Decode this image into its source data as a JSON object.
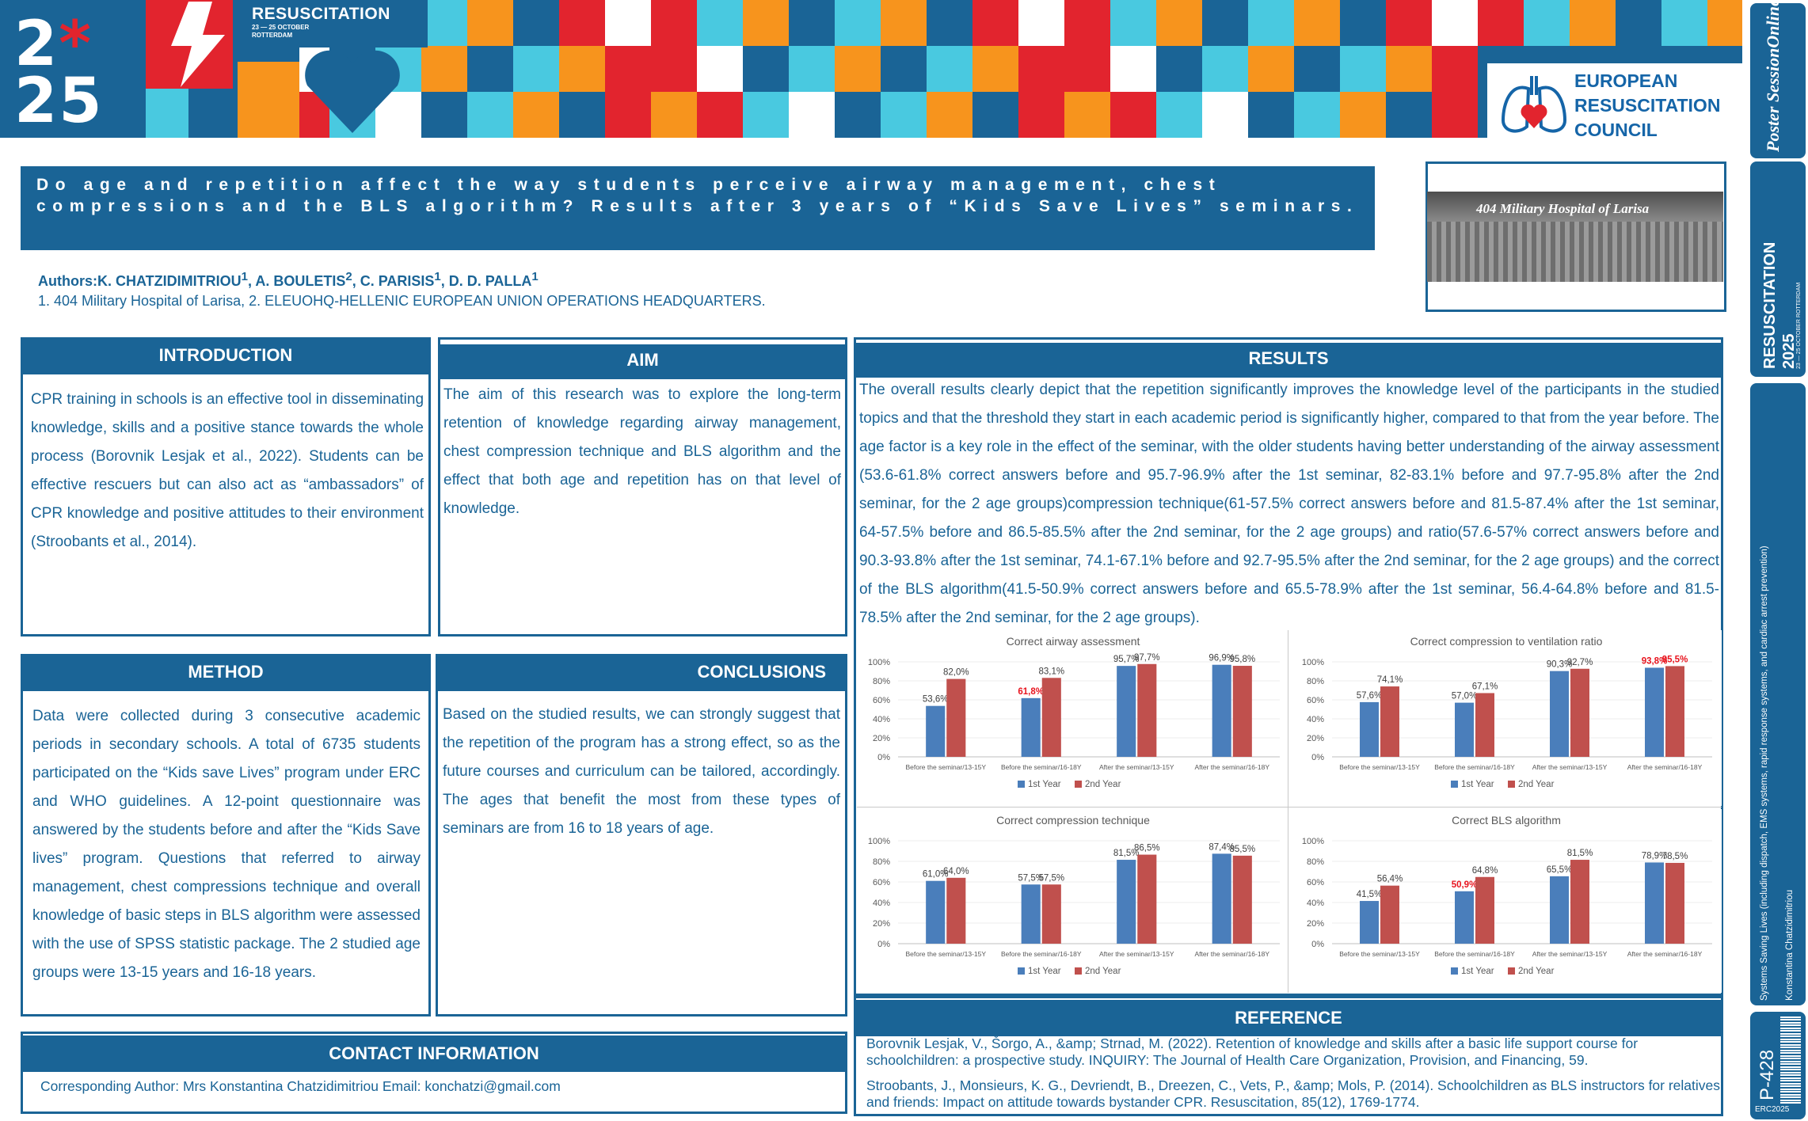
{
  "banner": {
    "year_top": "2",
    "year_asterisk": "*",
    "year_bottom": "25",
    "event_name": "RESUSCITATION",
    "event_dates": "23 — 25 OCTOBER",
    "event_city": "ROTTERDAM",
    "erc_line1": "EUROPEAN",
    "erc_line2": "RESUSCITATION",
    "erc_line3": "COUNCIL"
  },
  "sidebar": {
    "session_text": "Poster SessionOnline",
    "event_brand": "RESUSCITATION",
    "event_year": "2025",
    "event_dates": "23 — 25 OCTOBER",
    "event_city": "ROTTERDAM",
    "topic": "Systems Saving Lives (including dispatch, EMS systems, rapid response systems, and cardiac arrest prevention)",
    "author": "Konstantina Chatzidimitriou",
    "poster_id": "P-428",
    "code": "ERC2025"
  },
  "title": {
    "text": "Do age and repetition affect the way students perceive airway management, chest compressions and the BLS algorithm? Results after 3 years of “Kids Save Lives” seminars."
  },
  "hospital_image_label": "404 Military Hospital of Larisa",
  "authors": {
    "prefix": "Authors:",
    "a1": "K. CHATZIDIMITRIOU",
    "s1": "1",
    "a2": ", A. BOULETIS",
    "s2": "2",
    "a3": ", C. PARISIS",
    "s3": "1",
    "a4": ", D. D. PALLA",
    "s4": "1",
    "affiliations": "1. 404 Military Hospital of Larisa, 2. ELEUOHQ-HELLENIC EUROPEAN UNION OPERATIONS HEADQUARTERS."
  },
  "sections": {
    "introduction": {
      "heading": "INTRODUCTION",
      "body": "CPR training in schools is an effective tool in disseminating knowledge, skills and a positive stance towards the whole process (Borovnik Lesjak et al., 2022). Students can be effective rescuers but can also act as “ambassadors” of CPR knowledge and positive attitudes to their environment (Stroobants et al., 2014)."
    },
    "aim": {
      "heading": "AIM",
      "body": "The aim of this research was to explore the long-term retention of knowledge regarding airway management, chest compression technique and BLS algorithm and the effect that both age and repetition has on that level of knowledge."
    },
    "results": {
      "heading": "RESULTS",
      "body": "The overall results clearly depict that the repetition significantly improves the knowledge level of the participants in the studied topics and that the threshold they start in each academic period is significantly higher, compared to that from the year before. The age factor is a key role in the effect of the seminar, with the older students having better understanding of the airway assessment (53.6-61.8% correct answers before and 95.7-96.9% after the 1st seminar, 82-83.1% before and 97.7-95.8% after the 2nd seminar, for the 2 age groups)compression technique(61-57.5% correct answers before and 81.5-87.4% after the 1st seminar, 64-57.5% before and 86.5-85.5% after the 2nd seminar, for the 2 age groups)  and ratio(57.6-57% correct answers before and 90.3-93.8% after the 1st seminar, 74.1-67.1% before and 92.7-95.5% after the 2nd seminar, for the 2 age groups)  and the correct of the BLS algorithm(41.5-50.9% correct answers before and 65.5-78.9% after the 1st seminar, 56.4-64.8% before and 81.5-78.5% after the 2nd seminar, for the 2 age groups)."
    },
    "method": {
      "heading": "METHOD",
      "body": "Data were collected during 3 consecutive academic periods in secondary schools. A total of 6735 students participated on the “Kids save Lives” program under ERC and WHO guidelines. A 12-point questionnaire was answered by the students before and after the “Kids Save lives” program. Questions that referred to airway management, chest compressions technique and overall knowledge of basic steps in BLS algorithm were assessed with the use of SPSS statistic package. The 2 studied age groups were 13-15 years and 16-18 years."
    },
    "conclusions": {
      "heading": "CONCLUSIONS",
      "body": "Based on the studied results, we can strongly suggest that the repetition of the program has a strong effect, so as the future courses and curriculum can be tailored, accordingly. The ages that benefit the most from these types of seminars are from 16 to 18 years of age."
    },
    "contact": {
      "heading": "CONTACT INFORMATION",
      "body": "Corresponding Author: Mrs Konstantina Chatzidimitriou Email: konchatzi@gmail.com"
    },
    "reference": {
      "heading": "REFERENCE",
      "ref1": "Borovnik Lesjak, V., Šorgo, A., &amp; Strnad, M. (2022). Retention of knowledge and skills after a basic life support course for schoolchildren: a prospective study. INQUIRY: The Journal of Health Care Organization, Provision, and Financing, 59.",
      "ref2": "Stroobants, J., Monsieurs, K. G., Devriendt, B., Dreezen, C., Vets, P., &amp; Mols, P. (2014). Schoolchildren as BLS instructors for relatives and friends: Impact on attitude towards bystander CPR. Resuscitation, 85(12), 1769-1774."
    }
  },
  "colors": {
    "primary": "#1a6496",
    "series1": "#4a7ebb",
    "series2": "#c0504d",
    "highlight": "#e8141e"
  },
  "chart_data": [
    {
      "type": "bar",
      "title": "Correct airway assessment",
      "categories": [
        "Before the seminar/13-15Y",
        "Before the seminar/16-18Y",
        "After the seminar/13-15Y",
        "After the seminar/16-18Y"
      ],
      "ylim": [
        0,
        100
      ],
      "yticks": [
        "0%",
        "20%",
        "40%",
        "60%",
        "80%",
        "100%"
      ],
      "legend": "bottom",
      "series": [
        {
          "name": "1st Year",
          "values": [
            53.6,
            61.8,
            95.7,
            96.9
          ],
          "labels": [
            "53,6%",
            "61,8%",
            "95,7%",
            "96,9%"
          ],
          "highlight": [
            false,
            true,
            false,
            false
          ]
        },
        {
          "name": "2nd Year",
          "values": [
            82.0,
            83.1,
            97.7,
            95.8
          ],
          "labels": [
            "82,0%",
            "83,1%",
            "97,7%",
            "95,8%"
          ],
          "highlight": [
            false,
            false,
            false,
            false
          ]
        }
      ]
    },
    {
      "type": "bar",
      "title": "Correct compression to ventilation ratio",
      "categories": [
        "Before the seminar/13-15Y",
        "Before the seminar/16-18Y",
        "After the seminar/13-15Y",
        "After the seminar/16-18Y"
      ],
      "ylim": [
        0,
        100
      ],
      "yticks": [
        "0%",
        "20%",
        "40%",
        "60%",
        "80%",
        "100%"
      ],
      "legend": "bottom",
      "series": [
        {
          "name": "1st Year",
          "values": [
            57.6,
            57.0,
            90.3,
            93.8
          ],
          "labels": [
            "57,6%",
            "57,0%",
            "90,3%",
            "93,8%"
          ],
          "highlight": [
            false,
            false,
            false,
            true
          ]
        },
        {
          "name": "2nd Year",
          "values": [
            74.1,
            67.1,
            92.7,
            95.5
          ],
          "labels": [
            "74,1%",
            "67,1%",
            "92,7%",
            "95,5%"
          ],
          "highlight": [
            false,
            false,
            false,
            true
          ]
        }
      ]
    },
    {
      "type": "bar",
      "title": "Correct compression technique",
      "categories": [
        "Before the seminar/13-15Y",
        "Before the seminar/16-18Y",
        "After the seminar/13-15Y",
        "After the seminar/16-18Y"
      ],
      "ylim": [
        0,
        100
      ],
      "yticks": [
        "0%",
        "20%",
        "40%",
        "60%",
        "80%",
        "100%"
      ],
      "legend": "bottom",
      "series": [
        {
          "name": "1st Year",
          "values": [
            61.0,
            57.5,
            81.5,
            87.4
          ],
          "labels": [
            "61,0%",
            "57,5%",
            "81,5%",
            "87,4%"
          ],
          "highlight": [
            false,
            false,
            false,
            false
          ]
        },
        {
          "name": "2nd Year",
          "values": [
            64.0,
            57.5,
            86.5,
            85.5
          ],
          "labels": [
            "64,0%",
            "57,5%",
            "86,5%",
            "85,5%"
          ],
          "highlight": [
            false,
            false,
            false,
            false
          ]
        }
      ]
    },
    {
      "type": "bar",
      "title": "Correct BLS algorithm",
      "categories": [
        "Before the seminar/13-15Y",
        "Before the seminar/16-18Y",
        "After the seminar/13-15Y",
        "After the seminar/16-18Y"
      ],
      "ylim": [
        0,
        100
      ],
      "yticks": [
        "0%",
        "20%",
        "40%",
        "60%",
        "80%",
        "100%"
      ],
      "legend": "bottom",
      "series": [
        {
          "name": "1st Year",
          "values": [
            41.5,
            50.9,
            65.5,
            78.9
          ],
          "labels": [
            "41,5%",
            "50,9%",
            "65,5%",
            "78,9%"
          ],
          "highlight": [
            false,
            true,
            false,
            false
          ]
        },
        {
          "name": "2nd Year",
          "values": [
            56.4,
            64.8,
            81.5,
            78.5
          ],
          "labels": [
            "56,4%",
            "64,8%",
            "81,5%",
            "78,5%"
          ],
          "highlight": [
            false,
            false,
            false,
            false
          ]
        }
      ]
    }
  ]
}
